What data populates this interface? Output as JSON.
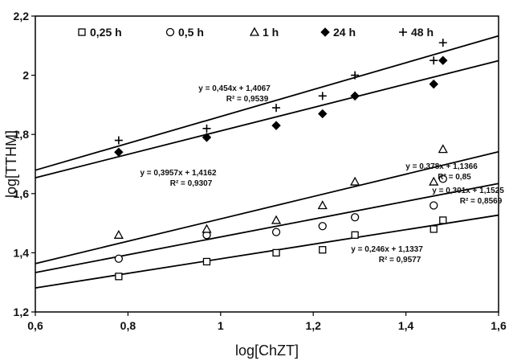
{
  "chart_data": {
    "type": "scatter",
    "title": "",
    "xlabel": "log[ChZT]",
    "ylabel": "log[TTHM]",
    "xlim": [
      0.6,
      1.6
    ],
    "ylim": [
      1.2,
      2.2
    ],
    "xticks": [
      "0,6",
      "0,8",
      "1",
      "1,2",
      "1,4",
      "1,6"
    ],
    "yticks": [
      "1,2",
      "1,4",
      "1,6",
      "1,8",
      "2",
      "2,2"
    ],
    "grid": false,
    "legend": "top",
    "series": [
      {
        "name": "0,25 h",
        "marker": "square",
        "x": [
          0.78,
          0.97,
          1.12,
          1.22,
          1.29,
          1.46,
          1.48
        ],
        "y": [
          1.32,
          1.37,
          1.4,
          1.41,
          1.46,
          1.48,
          1.51
        ],
        "fit": {
          "slope": 0.246,
          "intercept": 1.1337,
          "equation": "y = 0,246x + 1,1337",
          "r2": "R² = 0,9577"
        }
      },
      {
        "name": "0,5 h",
        "marker": "circle",
        "x": [
          0.78,
          0.97,
          1.12,
          1.22,
          1.29,
          1.46,
          1.48
        ],
        "y": [
          1.38,
          1.46,
          1.47,
          1.49,
          1.52,
          1.56,
          1.65
        ],
        "fit": {
          "slope": 0.301,
          "intercept": 1.1525,
          "equation": "y = 0,301x + 1,1525",
          "r2": "R² = 0,8569"
        }
      },
      {
        "name": "1 h",
        "marker": "triangle",
        "x": [
          0.78,
          0.97,
          1.12,
          1.22,
          1.29,
          1.46,
          1.48
        ],
        "y": [
          1.46,
          1.48,
          1.51,
          1.56,
          1.64,
          1.64,
          1.75
        ],
        "fit": {
          "slope": 0.378,
          "intercept": 1.1366,
          "equation": "y = 0,378x + 1,1366",
          "r2": "R² = 0,85"
        }
      },
      {
        "name": "24 h",
        "marker": "diamond",
        "x": [
          0.78,
          0.97,
          1.12,
          1.22,
          1.29,
          1.46,
          1.48
        ],
        "y": [
          1.74,
          1.79,
          1.83,
          1.87,
          1.93,
          1.97,
          2.05
        ],
        "fit": {
          "slope": 0.3957,
          "intercept": 1.4162,
          "equation": "y = 0,3957x + 1,4162",
          "r2": "R² = 0,9307"
        }
      },
      {
        "name": "48 h",
        "marker": "plus",
        "x": [
          0.78,
          0.97,
          1.12,
          1.22,
          1.29,
          1.46,
          1.48
        ],
        "y": [
          1.78,
          1.82,
          1.89,
          1.93,
          2.0,
          2.05,
          2.11
        ],
        "fit": {
          "slope": 0.454,
          "intercept": 1.4067,
          "equation": "y = 0,454x + 1,4067",
          "r2": "R² = 0,9539"
        }
      }
    ]
  }
}
